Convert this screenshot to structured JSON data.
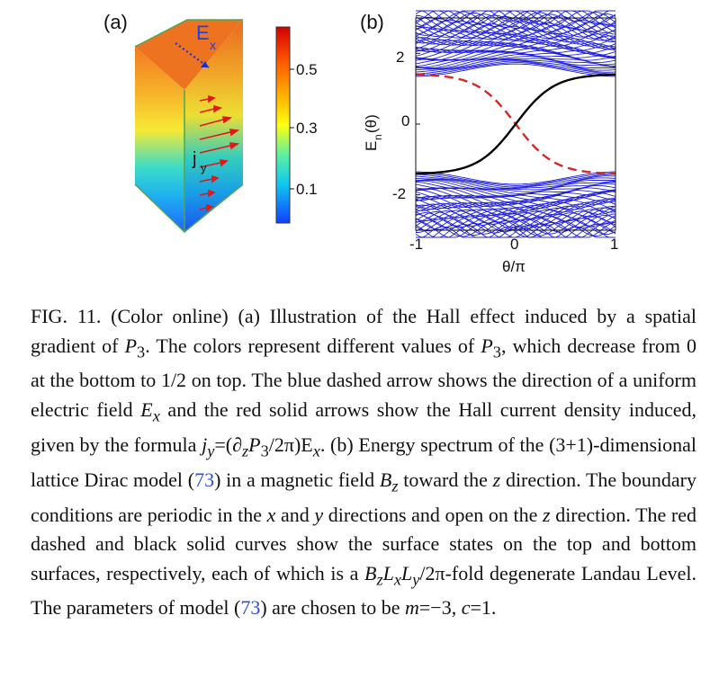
{
  "panel_a": {
    "label": "(a)",
    "field_label": "E",
    "field_sub": "x",
    "current_label": "j",
    "current_sub": "y",
    "colorbar": {
      "ticks": [
        "0.5",
        "0.3",
        "0.1"
      ],
      "colors": [
        "#d7191c",
        "#fdae61",
        "#ffff00",
        "#1ad8d8",
        "#1e5bff"
      ]
    }
  },
  "panel_b": {
    "label": "(b)",
    "ylabel": "E",
    "ylabel_sub": "n",
    "ylabel_arg": "(θ)",
    "xlabel": "θ/π",
    "yticks": [
      "2",
      "0",
      "-2"
    ],
    "xticks": [
      "-1",
      "0",
      "1"
    ]
  },
  "chart_data": {
    "type": "line",
    "x": [
      -1,
      -0.5,
      0,
      0.5,
      1
    ],
    "series": [
      {
        "values": [
          1.4,
          1.2,
          0.05,
          -1.2,
          -1.4
        ],
        "color": "#d62728",
        "style": "dashed"
      },
      {
        "values": [
          -1.4,
          -1.2,
          -0.05,
          1.2,
          1.4
        ],
        "color": "#000000",
        "style": "solid"
      }
    ],
    "bulk_band_color": "#1f1fd6",
    "xlim": [
      -1,
      1
    ],
    "ylim": [
      -3,
      3
    ]
  },
  "caption": {
    "p1": "FIG. 11. (Color online) (a) Illustration of the Hall effect induced by a spatial gradient of ",
    "P3a": "P",
    "P3a_sub": "3",
    "p2": ". The colors represent different values of ",
    "P3b": "P",
    "P3b_sub": "3",
    "p3": ", which decrease from 0 at the bottom to 1/2 on top. The blue dashed arrow shows the direction of a uniform electric field ",
    "Ex": "E",
    "Ex_sub": "x",
    "p4": " and the red solid arrows show the Hall current density induced, given by the formula ",
    "formula": "j",
    "formula_sub": "y",
    "formula_rest": "=(∂",
    "formula_z": "z",
    "formula_P": "P",
    "formula_P_sub": "3",
    "formula_end": "/2π)E",
    "formula_end_sub": "x",
    "p5": ". (b) Energy spectrum of the (3+1)-dimensional lattice Dirac model (",
    "ref1": "73",
    "p6": ") in a magnetic field ",
    "Bz": "B",
    "Bz_sub": "z",
    "p7": " toward the ",
    "z1": "z",
    "p8": " direction. The boundary conditions are periodic in the ",
    "x1": "x",
    "p9": " and ",
    "y1": "y",
    "p10": " directions and open on the ",
    "z2": "z",
    "p11": " direction. The red dashed and black solid curves show the surface states on the top and bottom surfaces, respectively, each of which is a ",
    "deg": "B",
    "deg_z": "z",
    "deg_L": "L",
    "deg_x": "x",
    "deg_L2": "L",
    "deg_y": "y",
    "deg_rest": "/2π",
    "p12": "-fold degenerate Landau Level. The parameters of model (",
    "ref2": "73",
    "p13": ") are chosen to be ",
    "m": "m",
    "mval": "=−3, ",
    "c": "c",
    "cval": "=1."
  }
}
